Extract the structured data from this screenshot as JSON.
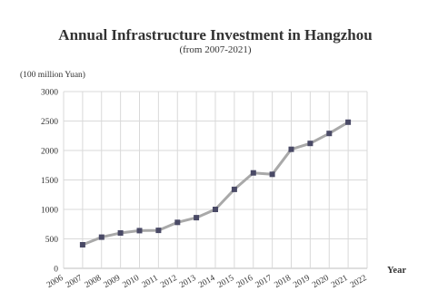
{
  "chart_data": {
    "type": "line",
    "title": "Annual Infrastructure Investment in Hangzhou",
    "subtitle": "(from 2007-2021)",
    "ylabel": "(100 million Yuan)",
    "xlabel": "Year",
    "x": [
      2007,
      2008,
      2009,
      2010,
      2011,
      2012,
      2013,
      2014,
      2015,
      2016,
      2017,
      2018,
      2019,
      2020,
      2021
    ],
    "values": [
      400,
      530,
      600,
      640,
      645,
      780,
      860,
      1000,
      1340,
      1620,
      1595,
      2020,
      2120,
      2290,
      2480
    ],
    "xlim": [
      2006,
      2022
    ],
    "ylim": [
      0,
      3000
    ],
    "xticks": [
      "2006",
      "2007",
      "2008",
      "2009",
      "2010",
      "2011",
      "2012",
      "2013",
      "2014",
      "2015",
      "2016",
      "2017",
      "2018",
      "2019",
      "2020",
      "2021",
      "2022"
    ],
    "yticks": [
      "0",
      "500",
      "1000",
      "1500",
      "2000",
      "2500",
      "3000"
    ],
    "grid": true,
    "colors": {
      "line": "#a9a9a9",
      "marker": "#4a4a66",
      "grid": "#d9d9d9",
      "axis": "#bfbfbf"
    }
  }
}
